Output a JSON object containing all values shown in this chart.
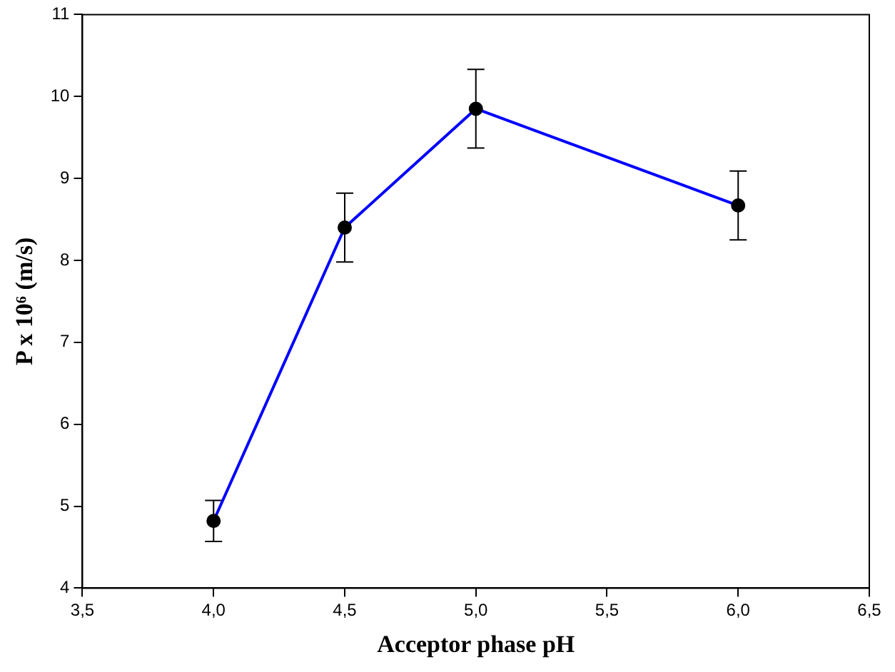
{
  "chart_data": {
    "type": "line",
    "xlabel": "Acceptor phase pH",
    "ylabel": "P x 10⁶ (m/s)",
    "x": [
      4.0,
      4.5,
      5.0,
      6.0
    ],
    "series": [
      {
        "color": "#0000ff",
        "values": [
          4.82,
          8.4,
          9.85,
          8.67
        ],
        "errors": [
          0.25,
          0.42,
          0.48,
          0.42
        ]
      }
    ],
    "xlim": [
      3.5,
      6.5
    ],
    "xticks": [
      {
        "value": 3.5,
        "label": "3,5"
      },
      {
        "value": 4.0,
        "label": "4,0"
      },
      {
        "value": 4.5,
        "label": "4,5"
      },
      {
        "value": 5.0,
        "label": "5,0"
      },
      {
        "value": 5.5,
        "label": "5,5"
      },
      {
        "value": 6.0,
        "label": "6,0"
      },
      {
        "value": 6.5,
        "label": "6,5"
      }
    ],
    "ylim": [
      4,
      11
    ],
    "yticks": [
      4,
      5,
      6,
      7,
      8,
      9,
      10,
      11
    ],
    "grid": false,
    "legend": false,
    "marker": "circle",
    "line_style": "solid"
  }
}
